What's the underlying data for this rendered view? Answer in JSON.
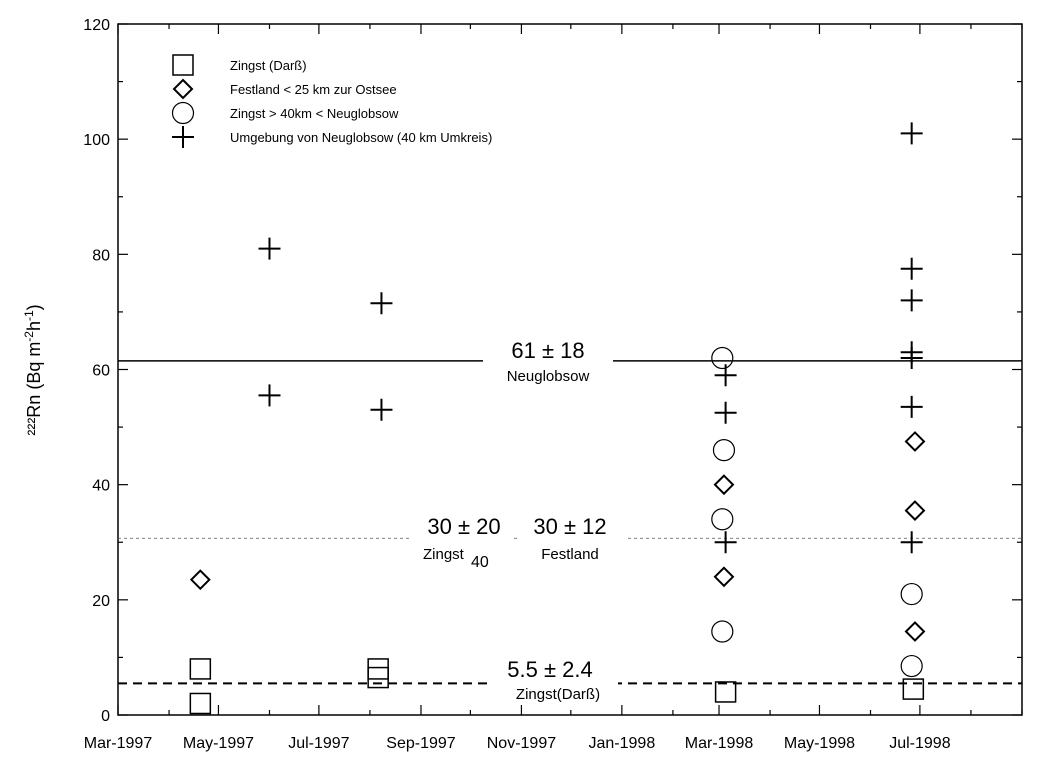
{
  "chart_data": {
    "type": "scatter",
    "ylabel": "²²²Rn (Bq m⁻²h⁻¹)",
    "ylabel_parts": {
      "pre": "²²²Rn (Bq m",
      "sup1": "-2",
      "mid": "h",
      "sup2": "-1",
      "post": ")"
    },
    "ylim": [
      0,
      120
    ],
    "y_ticks": [
      0,
      20,
      40,
      60,
      80,
      100,
      120
    ],
    "x_start": "1997-03-01",
    "x_end": "1998-09-01",
    "x_ticks": [
      {
        "date": "1997-03-01",
        "label": "Mar-1997"
      },
      {
        "date": "1997-05-01",
        "label": "May-1997"
      },
      {
        "date": "1997-07-01",
        "label": "Jul-1997"
      },
      {
        "date": "1997-09-01",
        "label": "Sep-1997"
      },
      {
        "date": "1997-11-01",
        "label": "Nov-1997"
      },
      {
        "date": "1998-01-01",
        "label": "Jan-1998"
      },
      {
        "date": "1998-03-01",
        "label": "Mar-1998"
      },
      {
        "date": "1998-05-01",
        "label": "May-1998"
      },
      {
        "date": "1998-07-01",
        "label": "Jul-1998"
      }
    ],
    "legend_position": "top-left",
    "series": [
      {
        "name": "Zingst (Darß)",
        "marker": "square",
        "points": [
          {
            "x": "1997-04-20",
            "y": 8
          },
          {
            "x": "1997-04-20",
            "y": 2
          },
          {
            "x": "1997-08-06",
            "y": 8
          },
          {
            "x": "1997-08-06",
            "y": 6.5
          },
          {
            "x": "1998-03-05",
            "y": 4
          },
          {
            "x": "1998-06-27",
            "y": 4.5
          }
        ]
      },
      {
        "name": "Festland < 25 km zur Ostsee",
        "marker": "diamond",
        "points": [
          {
            "x": "1997-04-20",
            "y": 23.5
          },
          {
            "x": "1998-03-04",
            "y": 40
          },
          {
            "x": "1998-03-04",
            "y": 24
          },
          {
            "x": "1998-06-28",
            "y": 47.5
          },
          {
            "x": "1998-06-28",
            "y": 35.5
          },
          {
            "x": "1998-06-28",
            "y": 14.5
          }
        ]
      },
      {
        "name": "Zingst > 40km < Neuglobsow",
        "marker": "circle",
        "points": [
          {
            "x": "1998-03-03",
            "y": 62
          },
          {
            "x": "1998-03-04",
            "y": 46
          },
          {
            "x": "1998-03-03",
            "y": 34
          },
          {
            "x": "1998-03-03",
            "y": 14.5
          },
          {
            "x": "1998-06-26",
            "y": 21
          },
          {
            "x": "1998-06-26",
            "y": 8.5
          }
        ]
      },
      {
        "name": "Umgebung von Neuglobsow (40 km Umkreis)",
        "marker": "plus",
        "points": [
          {
            "x": "1997-06-01",
            "y": 81
          },
          {
            "x": "1997-06-01",
            "y": 55.5
          },
          {
            "x": "1997-08-08",
            "y": 71.5
          },
          {
            "x": "1997-08-08",
            "y": 53
          },
          {
            "x": "1998-03-05",
            "y": 59
          },
          {
            "x": "1998-03-05",
            "y": 52.5
          },
          {
            "x": "1998-03-05",
            "y": 30
          },
          {
            "x": "1998-06-26",
            "y": 101
          },
          {
            "x": "1998-06-26",
            "y": 77.5
          },
          {
            "x": "1998-06-26",
            "y": 72
          },
          {
            "x": "1998-06-26",
            "y": 63
          },
          {
            "x": "1998-06-26",
            "y": 62
          },
          {
            "x": "1998-06-26",
            "y": 53.5
          },
          {
            "x": "1998-06-26",
            "y": 30
          }
        ]
      }
    ],
    "reference_lines": [
      {
        "y": 61.5,
        "style": "solid"
      },
      {
        "y": 30.7,
        "style": "dotted"
      },
      {
        "y": 5.5,
        "style": "dashed"
      }
    ],
    "annotations": [
      {
        "id": "neuglobsow_value",
        "text": "61 ± 18"
      },
      {
        "id": "neuglobsow_label",
        "text": "Neuglobsow"
      },
      {
        "id": "zingst40_value",
        "text": "30 ± 20"
      },
      {
        "id": "zingst40_label",
        "text": "Zingst"
      },
      {
        "id": "zingst40_sub",
        "text": "40"
      },
      {
        "id": "festland_value",
        "text": "30 ± 12"
      },
      {
        "id": "festland_label",
        "text": "Festland"
      },
      {
        "id": "darss_value",
        "text": "5.5 ± 2.4"
      },
      {
        "id": "darss_label",
        "text": "Zingst(Darß)"
      }
    ]
  }
}
